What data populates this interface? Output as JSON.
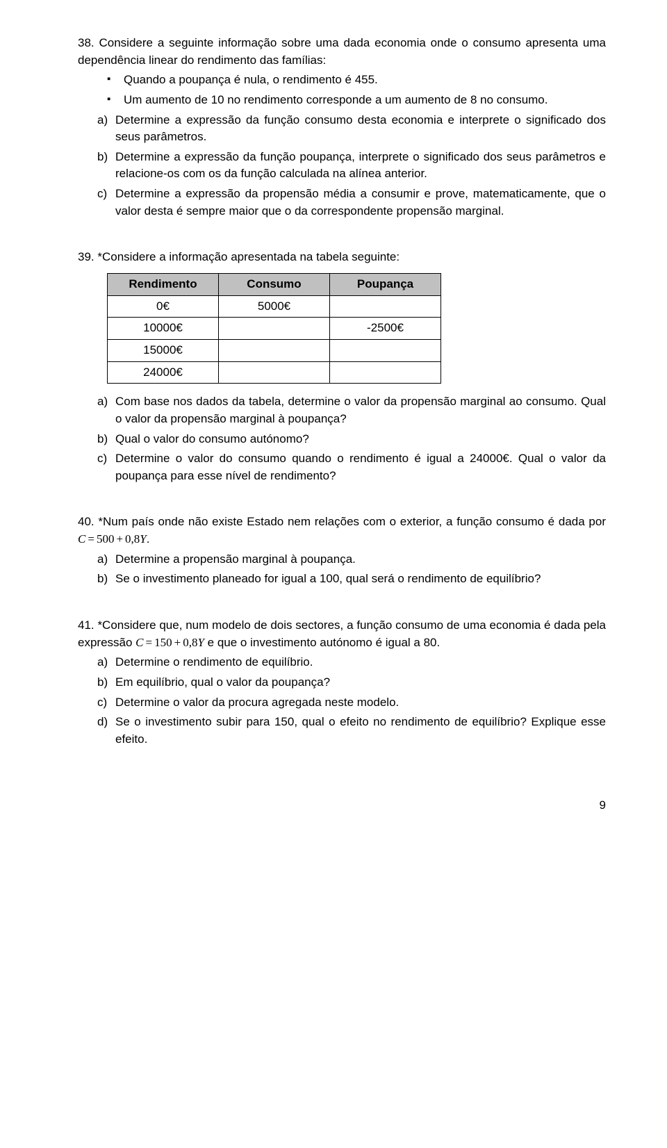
{
  "q38": {
    "number": "38.",
    "intro": "Considere a seguinte informação sobre uma dada economia onde o consumo apresenta uma dependência linear do rendimento das famílias:",
    "bullets": [
      "Quando a poupança é nula, o rendimento é 455.",
      "Um aumento de 10 no rendimento corresponde a um aumento de 8 no consumo."
    ],
    "subs": [
      {
        "m": "a)",
        "t": "Determine a expressão da função consumo desta economia e interprete o significado dos seus parâmetros."
      },
      {
        "m": "b)",
        "t": "Determine a expressão da função poupança, interprete o significado dos seus parâmetros e relacione-os com os da função calculada na alínea anterior."
      },
      {
        "m": "c)",
        "t": "Determine a expressão da propensão média a consumir e prove, matematicamente, que o valor desta é sempre maior que o da correspondente propensão marginal."
      }
    ]
  },
  "q39": {
    "number": "39.",
    "intro": "*Considere a informação apresentada na tabela seguinte:",
    "table": {
      "headers": [
        "Rendimento",
        "Consumo",
        "Poupança"
      ],
      "rows": [
        [
          "0€",
          "5000€",
          ""
        ],
        [
          "10000€",
          "",
          "-2500€"
        ],
        [
          "15000€",
          "",
          ""
        ],
        [
          "24000€",
          "",
          ""
        ]
      ],
      "header_bg": "#c0c0c0",
      "border_color": "#000000"
    },
    "subs": [
      {
        "m": "a)",
        "t": "Com base nos dados da tabela, determine o valor da propensão marginal ao consumo. Qual o valor da propensão marginal à poupança?"
      },
      {
        "m": "b)",
        "t": "Qual o valor do consumo autónomo?"
      },
      {
        "m": "c)",
        "t": "Determine o valor do consumo quando o rendimento é igual a 24000€. Qual o valor da poupança para esse nível de rendimento?"
      }
    ]
  },
  "q40": {
    "number": "40.",
    "intro_pre": "*Num país onde não existe Estado nem relações com o exterior, a função consumo é dada por ",
    "formula": {
      "lhs": "C",
      "eq": "=",
      "a": "500",
      "plus": "+",
      "b": "0,8",
      "y": "Y"
    },
    "intro_post": ".",
    "subs": [
      {
        "m": "a)",
        "t": "Determine a propensão marginal à poupança."
      },
      {
        "m": "b)",
        "t": "Se o investimento planeado for igual a 100, qual será o rendimento de equilíbrio?"
      }
    ]
  },
  "q41": {
    "number": "41.",
    "intro_pre": "*Considere que, num modelo de dois sectores, a função consumo de uma economia é dada pela expressão ",
    "formula": {
      "lhs": "C",
      "eq": "=",
      "a": "150",
      "plus": "+",
      "b": "0,8",
      "y": "Y"
    },
    "intro_post": " e que o investimento autónomo é igual a 80.",
    "subs": [
      {
        "m": "a)",
        "t": "Determine o rendimento de equilíbrio."
      },
      {
        "m": "b)",
        "t": "Em equilíbrio, qual o valor da poupança?"
      },
      {
        "m": "c)",
        "t": "Determine o valor da procura agregada neste modelo."
      },
      {
        "m": "d)",
        "t": "Se o investimento subir para 150, qual o efeito no rendimento de equilíbrio? Explique esse efeito."
      }
    ]
  },
  "page_number": "9"
}
